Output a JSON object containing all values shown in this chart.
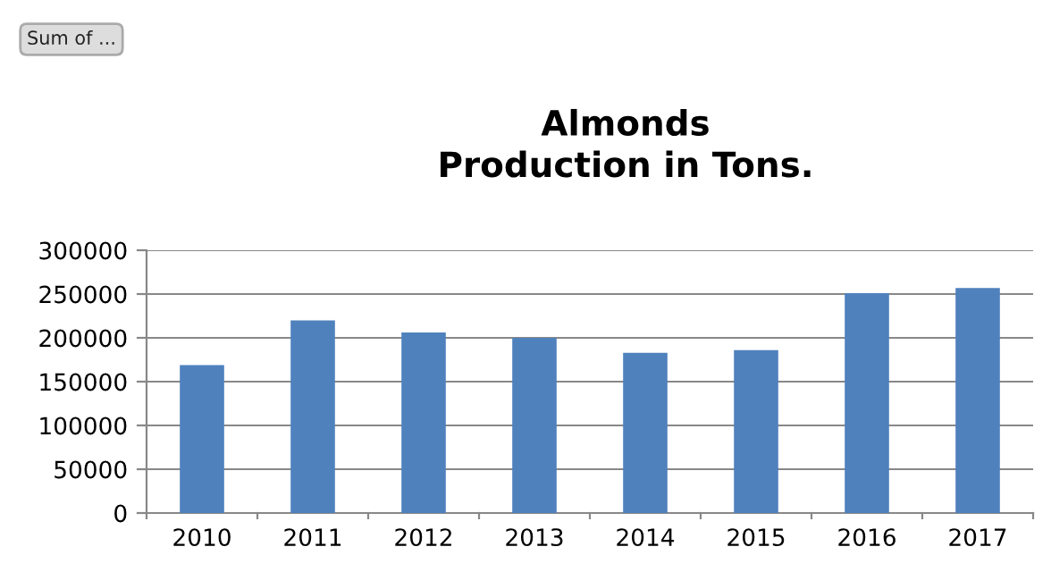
{
  "chart_data": {
    "type": "bar",
    "title": "Almonds\nProduction in Tons.",
    "categories": [
      "2010",
      "2011",
      "2012",
      "2013",
      "2014",
      "2015",
      "2016",
      "2017"
    ],
    "values": [
      169000,
      220000,
      206000,
      200000,
      183000,
      186000,
      251000,
      257000
    ],
    "color": "#4f81bd",
    "ylim": [
      0,
      300000
    ],
    "yticks": [
      0,
      50000,
      100000,
      150000,
      200000,
      250000,
      300000
    ],
    "grid": "y",
    "annotations": [
      "Sum of ..."
    ]
  }
}
